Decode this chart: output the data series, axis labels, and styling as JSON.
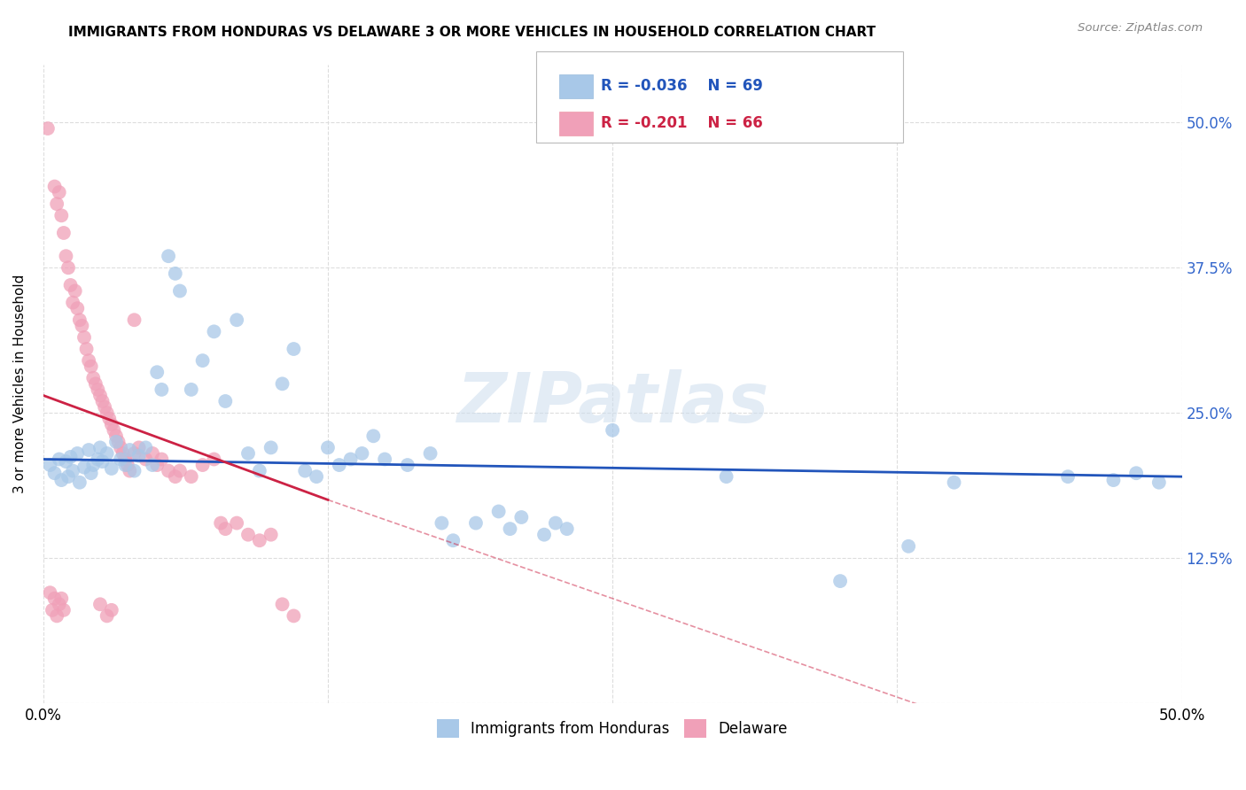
{
  "title": "IMMIGRANTS FROM HONDURAS VS DELAWARE 3 OR MORE VEHICLES IN HOUSEHOLD CORRELATION CHART",
  "source": "Source: ZipAtlas.com",
  "ylabel": "3 or more Vehicles in Household",
  "legend_blue_label": "Immigrants from Honduras",
  "legend_pink_label": "Delaware",
  "R_blue": -0.036,
  "N_blue": 69,
  "R_pink": -0.201,
  "N_pink": 66,
  "blue_color": "#a8c8e8",
  "pink_color": "#f0a0b8",
  "line_blue_color": "#2255bb",
  "line_pink_color": "#cc2244",
  "watermark": "ZIPatlas",
  "blue_scatter": [
    [
      0.3,
      20.5
    ],
    [
      0.5,
      19.8
    ],
    [
      0.7,
      21.0
    ],
    [
      0.8,
      19.2
    ],
    [
      1.0,
      20.8
    ],
    [
      1.1,
      19.5
    ],
    [
      1.2,
      21.2
    ],
    [
      1.3,
      20.0
    ],
    [
      1.5,
      21.5
    ],
    [
      1.6,
      19.0
    ],
    [
      1.8,
      20.3
    ],
    [
      2.0,
      21.8
    ],
    [
      2.1,
      19.8
    ],
    [
      2.2,
      20.5
    ],
    [
      2.4,
      21.0
    ],
    [
      2.5,
      22.0
    ],
    [
      2.6,
      20.8
    ],
    [
      2.8,
      21.5
    ],
    [
      3.0,
      20.2
    ],
    [
      3.2,
      22.5
    ],
    [
      3.4,
      21.0
    ],
    [
      3.6,
      20.5
    ],
    [
      3.8,
      21.8
    ],
    [
      4.0,
      20.0
    ],
    [
      4.2,
      21.3
    ],
    [
      4.5,
      22.0
    ],
    [
      4.8,
      20.5
    ],
    [
      5.0,
      28.5
    ],
    [
      5.2,
      27.0
    ],
    [
      5.5,
      38.5
    ],
    [
      5.8,
      37.0
    ],
    [
      6.0,
      35.5
    ],
    [
      6.5,
      27.0
    ],
    [
      7.0,
      29.5
    ],
    [
      7.5,
      32.0
    ],
    [
      8.0,
      26.0
    ],
    [
      8.5,
      33.0
    ],
    [
      9.0,
      21.5
    ],
    [
      9.5,
      20.0
    ],
    [
      10.0,
      22.0
    ],
    [
      10.5,
      27.5
    ],
    [
      11.0,
      30.5
    ],
    [
      11.5,
      20.0
    ],
    [
      12.0,
      19.5
    ],
    [
      12.5,
      22.0
    ],
    [
      13.0,
      20.5
    ],
    [
      13.5,
      21.0
    ],
    [
      14.0,
      21.5
    ],
    [
      14.5,
      23.0
    ],
    [
      15.0,
      21.0
    ],
    [
      16.0,
      20.5
    ],
    [
      17.0,
      21.5
    ],
    [
      17.5,
      15.5
    ],
    [
      18.0,
      14.0
    ],
    [
      19.0,
      15.5
    ],
    [
      20.0,
      16.5
    ],
    [
      20.5,
      15.0
    ],
    [
      21.0,
      16.0
    ],
    [
      22.0,
      14.5
    ],
    [
      22.5,
      15.5
    ],
    [
      23.0,
      15.0
    ],
    [
      25.0,
      23.5
    ],
    [
      30.0,
      19.5
    ],
    [
      35.0,
      10.5
    ],
    [
      38.0,
      13.5
    ],
    [
      40.0,
      19.0
    ],
    [
      45.0,
      19.5
    ],
    [
      47.0,
      19.2
    ],
    [
      48.0,
      19.8
    ],
    [
      49.0,
      19.0
    ]
  ],
  "pink_scatter": [
    [
      0.2,
      49.5
    ],
    [
      0.5,
      44.5
    ],
    [
      0.6,
      43.0
    ],
    [
      0.7,
      44.0
    ],
    [
      0.8,
      42.0
    ],
    [
      0.9,
      40.5
    ],
    [
      1.0,
      38.5
    ],
    [
      1.1,
      37.5
    ],
    [
      1.2,
      36.0
    ],
    [
      1.3,
      34.5
    ],
    [
      1.4,
      35.5
    ],
    [
      1.5,
      34.0
    ],
    [
      1.6,
      33.0
    ],
    [
      1.7,
      32.5
    ],
    [
      1.8,
      31.5
    ],
    [
      1.9,
      30.5
    ],
    [
      2.0,
      29.5
    ],
    [
      2.1,
      29.0
    ],
    [
      2.2,
      28.0
    ],
    [
      2.3,
      27.5
    ],
    [
      2.4,
      27.0
    ],
    [
      2.5,
      26.5
    ],
    [
      2.6,
      26.0
    ],
    [
      2.7,
      25.5
    ],
    [
      2.8,
      25.0
    ],
    [
      2.9,
      24.5
    ],
    [
      3.0,
      24.0
    ],
    [
      3.1,
      23.5
    ],
    [
      3.2,
      23.0
    ],
    [
      3.3,
      22.5
    ],
    [
      3.4,
      22.0
    ],
    [
      3.5,
      21.5
    ],
    [
      3.6,
      21.0
    ],
    [
      3.7,
      20.5
    ],
    [
      3.8,
      20.0
    ],
    [
      4.0,
      21.5
    ],
    [
      4.2,
      22.0
    ],
    [
      4.5,
      21.0
    ],
    [
      4.8,
      21.5
    ],
    [
      5.0,
      20.5
    ],
    [
      5.2,
      21.0
    ],
    [
      5.5,
      20.0
    ],
    [
      5.8,
      19.5
    ],
    [
      6.0,
      20.0
    ],
    [
      6.5,
      19.5
    ],
    [
      7.0,
      20.5
    ],
    [
      7.5,
      21.0
    ],
    [
      7.8,
      15.5
    ],
    [
      8.0,
      15.0
    ],
    [
      8.5,
      15.5
    ],
    [
      9.0,
      14.5
    ],
    [
      9.5,
      14.0
    ],
    [
      10.0,
      14.5
    ],
    [
      10.5,
      8.5
    ],
    [
      11.0,
      7.5
    ],
    [
      4.0,
      33.0
    ],
    [
      0.3,
      9.5
    ],
    [
      0.4,
      8.0
    ],
    [
      0.5,
      9.0
    ],
    [
      0.6,
      7.5
    ],
    [
      0.7,
      8.5
    ],
    [
      0.8,
      9.0
    ],
    [
      0.9,
      8.0
    ],
    [
      2.5,
      8.5
    ],
    [
      2.8,
      7.5
    ],
    [
      3.0,
      8.0
    ]
  ],
  "xlim": [
    0,
    50
  ],
  "ylim": [
    0,
    55
  ],
  "xticks": [
    0,
    12.5,
    25,
    37.5,
    50
  ],
  "yticks": [
    0,
    12.5,
    25,
    37.5,
    50
  ],
  "background_color": "#ffffff",
  "grid_color": "#dddddd",
  "blue_line": [
    [
      0,
      50
    ],
    [
      21.0,
      19.5
    ]
  ],
  "pink_line_solid": [
    [
      0,
      12.5
    ],
    [
      26.5,
      17.5
    ]
  ],
  "pink_line_dash": [
    [
      12.5,
      50
    ],
    [
      17.5,
      -8.0
    ]
  ]
}
